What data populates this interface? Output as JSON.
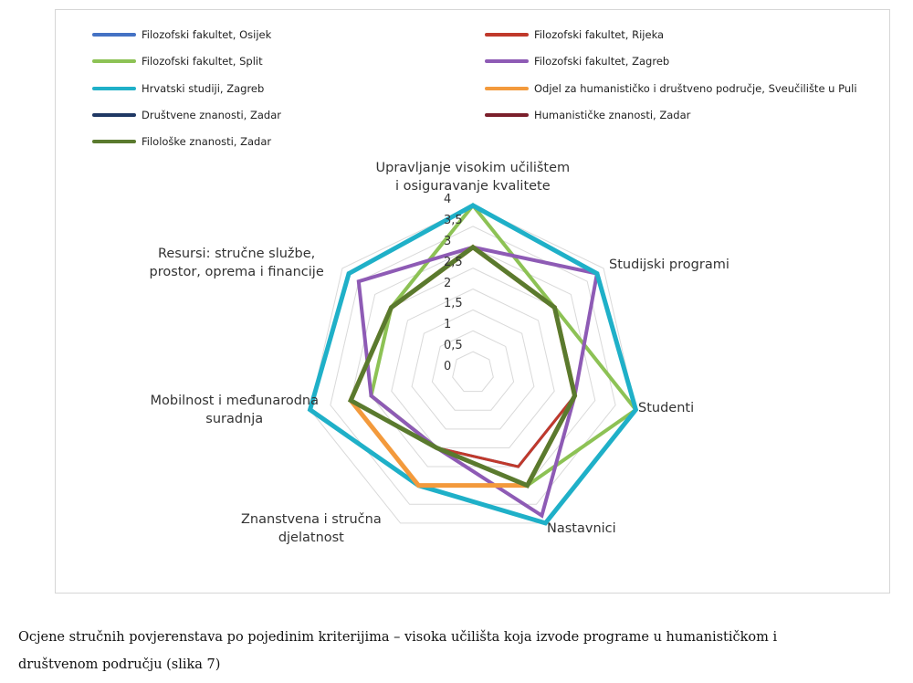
{
  "chart_data": {
    "type": "radar",
    "axes": [
      "Upravljanje visokim učilištem i osiguravanje kvalitete",
      "Studijski programi",
      "Studenti",
      "Nastavnici",
      "Znanstvena i stručna djelatnost",
      "Mobilnost i međunarodna suradnja",
      "Resursi: stručne službe, prostor, oprema i financije"
    ],
    "axis_label_lines": [
      [
        "Upravljanje visokim učilištem",
        "i osiguravanje kvalitete"
      ],
      [
        "Studijski programi"
      ],
      [
        "Studenti"
      ],
      [
        "Nastavnici"
      ],
      [
        "Znanstvena i stručna",
        "djelatnost"
      ],
      [
        "Mobilnost i međunarodna",
        "suradnja"
      ],
      [
        "Resursi: stručne službe,",
        "prostor, oprema i financije"
      ]
    ],
    "ticks": [
      "0",
      "0,5",
      "1",
      "1,5",
      "2",
      "2,5",
      "3",
      "3,5",
      "4"
    ],
    "rmax": 4,
    "series": [
      {
        "name": "Filozofski fakultet, Osijek",
        "color": "#4472c4",
        "values": [
          3,
          2.5,
          2.5,
          2.5,
          2,
          2.5,
          2.5
        ]
      },
      {
        "name": "Filozofski fakultet, Rijeka",
        "color": "#c0392b",
        "values": [
          3,
          2.5,
          2.5,
          2.5,
          2,
          2.5,
          2.5
        ]
      },
      {
        "name": "Filozofski fakultet, Split",
        "color": "#8dc255",
        "values": [
          4,
          2.5,
          4,
          3,
          2,
          2.5,
          2.5
        ]
      },
      {
        "name": "Filozofski fakultet, Zagreb",
        "color": "#8e5bb5",
        "values": [
          3,
          3.8,
          2.5,
          3.8,
          2,
          2.5,
          3.5
        ]
      },
      {
        "name": "Hrvatski studiji, Zagreb",
        "color": "#1fb0c8",
        "values": [
          4,
          3.8,
          4,
          4,
          3,
          4,
          3.8
        ]
      },
      {
        "name": "Odjel za humanističko i društveno područje, Sveučilište u Puli",
        "color": "#f39a3c",
        "values": [
          3,
          2.5,
          2.5,
          3,
          3,
          3,
          2.5
        ]
      },
      {
        "name": "Društvene znanosti, Zadar",
        "color": "#1f3864",
        "values": [
          3,
          2.5,
          2.5,
          3,
          2,
          3,
          2.5
        ]
      },
      {
        "name": "Humanističke znanosti, Zadar",
        "color": "#7b1f2b",
        "values": [
          3,
          2.5,
          2.5,
          3,
          2,
          3,
          2.5
        ]
      },
      {
        "name": "Filološke znanosti, Zadar",
        "color": "#5a7a2e",
        "values": [
          3,
          2.5,
          2.5,
          3,
          2,
          3,
          2.5
        ]
      }
    ]
  },
  "caption_line1": "Ocjene stručnih povjerenstava po pojedinim kriterijima – visoka učilišta koja izvode programe  u humanističkom i",
  "caption_line2": "društvenom području (slika 7)"
}
